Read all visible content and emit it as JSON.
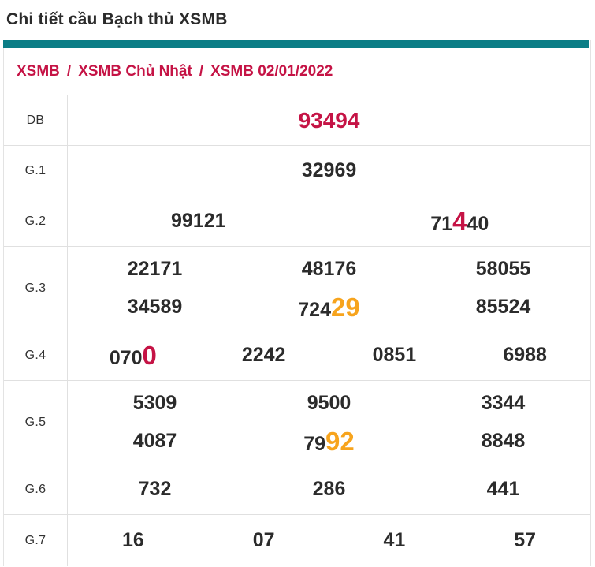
{
  "page_title": "Chi tiết cầu Bạch thủ XSMB",
  "breadcrumb": {
    "separator": "/",
    "items": [
      "XSMB",
      "XSMB Chủ Nhật",
      "XSMB 02/01/2022"
    ]
  },
  "colors": {
    "accent_teal": "#0b7d86",
    "crimson": "#c51345",
    "orange": "#f7a41d",
    "text_dark": "#2b2b2b",
    "border": "#e0e0e0"
  },
  "prize_table": {
    "rows": [
      {
        "label": "DB",
        "lines": [
          [
            [
              {
                "t": "93494",
                "c": "crimson",
                "sz": "md"
              }
            ]
          ]
        ]
      },
      {
        "label": "G.1",
        "lines": [
          [
            [
              {
                "t": "32969"
              }
            ]
          ]
        ]
      },
      {
        "label": "G.2",
        "lines": [
          [
            [
              {
                "t": "99121"
              }
            ],
            [
              {
                "t": "71"
              },
              {
                "t": "4",
                "c": "crimson",
                "sz": "lg"
              },
              {
                "t": "40"
              }
            ]
          ]
        ]
      },
      {
        "label": "G.3",
        "lines": [
          [
            [
              {
                "t": "22171"
              }
            ],
            [
              {
                "t": "48176"
              }
            ],
            [
              {
                "t": "58055"
              }
            ]
          ],
          [
            [
              {
                "t": "34589"
              }
            ],
            [
              {
                "t": "724"
              },
              {
                "t": "29",
                "c": "orange",
                "sz": "lg"
              }
            ],
            [
              {
                "t": "85524"
              }
            ]
          ]
        ]
      },
      {
        "label": "G.4",
        "lines": [
          [
            [
              {
                "t": "070"
              },
              {
                "t": "0",
                "c": "crimson",
                "sz": "lg"
              }
            ],
            [
              {
                "t": "2242"
              }
            ],
            [
              {
                "t": "0851"
              }
            ],
            [
              {
                "t": "6988"
              }
            ]
          ]
        ]
      },
      {
        "label": "G.5",
        "lines": [
          [
            [
              {
                "t": "5309"
              }
            ],
            [
              {
                "t": "9500"
              }
            ],
            [
              {
                "t": "3344"
              }
            ]
          ],
          [
            [
              {
                "t": "4087"
              }
            ],
            [
              {
                "t": "79"
              },
              {
                "t": "92",
                "c": "orange",
                "sz": "lg"
              }
            ],
            [
              {
                "t": "8848"
              }
            ]
          ]
        ]
      },
      {
        "label": "G.6",
        "lines": [
          [
            [
              {
                "t": "732"
              }
            ],
            [
              {
                "t": "286"
              }
            ],
            [
              {
                "t": "441"
              }
            ]
          ]
        ]
      },
      {
        "label": "G.7",
        "lines": [
          [
            [
              {
                "t": "16"
              }
            ],
            [
              {
                "t": "07"
              }
            ],
            [
              {
                "t": "41"
              }
            ],
            [
              {
                "t": "57"
              }
            ]
          ]
        ]
      }
    ]
  }
}
